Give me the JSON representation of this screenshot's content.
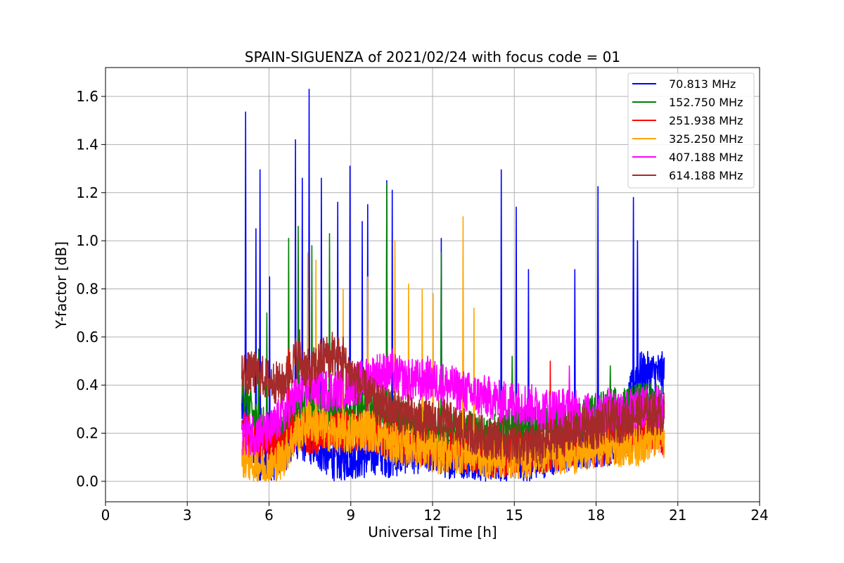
{
  "chart_data": {
    "type": "line",
    "title": "SPAIN-SIGUENZA of 2021/02/24 with focus code = 01",
    "xlabel": "Universal Time [h]",
    "ylabel": "Y-factor [dB]",
    "xlim": [
      0,
      24
    ],
    "ylim": [
      -0.085,
      1.72
    ],
    "xticks": [
      0,
      3,
      6,
      9,
      12,
      15,
      18,
      21,
      24
    ],
    "xtick_labels": [
      "0",
      "3",
      "6",
      "9",
      "12",
      "15",
      "18",
      "21",
      "24"
    ],
    "yticks": [
      0.0,
      0.2,
      0.4,
      0.6,
      0.8,
      1.0,
      1.2,
      1.4,
      1.6
    ],
    "ytick_labels": [
      "0.0",
      "0.2",
      "0.4",
      "0.6",
      "0.8",
      "1.0",
      "1.2",
      "1.4",
      "1.6"
    ],
    "grid": true,
    "legend_position": "top-right",
    "x_range_of_data": [
      5.0,
      20.5
    ],
    "series": [
      {
        "name": " 70.813 MHz",
        "color": "#0000ff",
        "x": [
          5.0,
          5.5,
          6.0,
          6.5,
          7.0,
          7.5,
          8.0,
          8.5,
          9.0,
          9.5,
          10.0,
          10.5,
          11.0,
          11.5,
          12.0,
          12.5,
          13.0,
          13.5,
          14.0,
          14.5,
          15.0,
          15.5,
          16.0,
          16.5,
          17.0,
          17.5,
          18.0,
          18.5,
          19.0,
          19.5,
          20.0,
          20.5
        ],
        "y": [
          0.3,
          0.1,
          0.05,
          0.12,
          0.18,
          0.16,
          0.12,
          0.08,
          0.1,
          0.1,
          0.12,
          0.1,
          0.12,
          0.12,
          0.12,
          0.1,
          0.1,
          0.1,
          0.08,
          0.08,
          0.1,
          0.08,
          0.1,
          0.12,
          0.12,
          0.14,
          0.15,
          0.15,
          0.25,
          0.45,
          0.45,
          0.45
        ],
        "peaks": [
          [
            5.12,
            1.535
          ],
          [
            5.5,
            1.05
          ],
          [
            5.65,
            1.295
          ],
          [
            6.0,
            0.85
          ],
          [
            6.95,
            1.42
          ],
          [
            7.2,
            1.26
          ],
          [
            7.45,
            1.63
          ],
          [
            7.9,
            1.26
          ],
          [
            8.5,
            1.16
          ],
          [
            8.95,
            1.31
          ],
          [
            9.4,
            1.08
          ],
          [
            9.6,
            1.15
          ],
          [
            10.3,
            1.25
          ],
          [
            10.5,
            1.21
          ],
          [
            12.3,
            1.01
          ],
          [
            14.5,
            1.295
          ],
          [
            15.05,
            1.14
          ],
          [
            15.5,
            0.88
          ],
          [
            17.2,
            0.88
          ],
          [
            18.05,
            1.225
          ],
          [
            19.35,
            1.18
          ],
          [
            19.5,
            1.0
          ]
        ]
      },
      {
        "name": "152.750 MHz",
        "color": "#008000",
        "x": [
          5.0,
          5.5,
          6.0,
          6.5,
          7.0,
          7.5,
          8.0,
          8.5,
          9.0,
          9.5,
          10.0,
          10.5,
          11.0,
          11.5,
          12.0,
          12.5,
          13.0,
          13.5,
          14.0,
          14.5,
          15.0,
          15.5,
          16.0,
          16.5,
          17.0,
          17.5,
          18.0,
          18.5,
          19.0,
          19.5,
          20.0,
          20.5
        ],
        "y": [
          0.4,
          0.25,
          0.2,
          0.2,
          0.3,
          0.28,
          0.3,
          0.28,
          0.3,
          0.3,
          0.3,
          0.28,
          0.25,
          0.25,
          0.22,
          0.2,
          0.2,
          0.2,
          0.18,
          0.2,
          0.22,
          0.22,
          0.22,
          0.22,
          0.25,
          0.25,
          0.28,
          0.3,
          0.3,
          0.32,
          0.32,
          0.32
        ],
        "peaks": [
          [
            5.6,
            0.55
          ],
          [
            5.9,
            0.7
          ],
          [
            6.7,
            1.01
          ],
          [
            7.05,
            1.06
          ],
          [
            7.55,
            0.98
          ],
          [
            8.2,
            1.03
          ],
          [
            10.3,
            1.24
          ],
          [
            12.3,
            0.95
          ],
          [
            14.9,
            0.52
          ],
          [
            18.5,
            0.48
          ]
        ]
      },
      {
        "name": "251.938 MHz",
        "color": "#ff0000",
        "x": [
          5.0,
          5.5,
          6.0,
          6.5,
          7.0,
          7.5,
          8.0,
          8.5,
          9.0,
          9.5,
          10.0,
          10.5,
          11.0,
          11.5,
          12.0,
          12.5,
          13.0,
          13.5,
          14.0,
          14.5,
          15.0,
          15.5,
          16.0,
          16.5,
          17.0,
          17.5,
          18.0,
          18.5,
          19.0,
          19.5,
          20.0,
          20.5
        ],
        "y": [
          0.2,
          0.18,
          0.15,
          0.15,
          0.22,
          0.2,
          0.2,
          0.2,
          0.22,
          0.2,
          0.2,
          0.18,
          0.15,
          0.15,
          0.15,
          0.12,
          0.12,
          0.12,
          0.1,
          0.1,
          0.12,
          0.12,
          0.12,
          0.12,
          0.15,
          0.15,
          0.15,
          0.15,
          0.18,
          0.2,
          0.2,
          0.2
        ],
        "peaks": [
          [
            6.7,
            0.55
          ],
          [
            16.3,
            0.5
          ]
        ]
      },
      {
        "name": "325.250 MHz",
        "color": "#ffa500",
        "x": [
          5.0,
          5.5,
          6.0,
          6.5,
          7.0,
          7.5,
          8.0,
          8.5,
          9.0,
          9.5,
          10.0,
          10.5,
          11.0,
          11.5,
          12.0,
          12.5,
          13.0,
          13.5,
          14.0,
          14.5,
          15.0,
          15.5,
          16.0,
          16.5,
          17.0,
          17.5,
          18.0,
          18.5,
          19.0,
          19.5,
          20.0,
          20.5
        ],
        "y": [
          0.1,
          0.08,
          0.05,
          0.1,
          0.2,
          0.25,
          0.22,
          0.2,
          0.2,
          0.22,
          0.2,
          0.15,
          0.15,
          0.15,
          0.12,
          0.12,
          0.12,
          0.12,
          0.1,
          0.1,
          0.1,
          0.1,
          0.12,
          0.12,
          0.12,
          0.12,
          0.15,
          0.15,
          0.15,
          0.15,
          0.18,
          0.18
        ],
        "peaks": [
          [
            7.4,
            0.95
          ],
          [
            7.7,
            0.92
          ],
          [
            8.7,
            0.8
          ],
          [
            9.6,
            0.85
          ],
          [
            10.6,
            1.0
          ],
          [
            11.1,
            0.82
          ],
          [
            11.6,
            0.8
          ],
          [
            12.0,
            0.78
          ],
          [
            13.1,
            1.1
          ],
          [
            13.5,
            0.72
          ]
        ]
      },
      {
        "name": "407.188 MHz",
        "color": "#ff00ff",
        "x": [
          5.0,
          5.5,
          6.0,
          6.5,
          7.0,
          7.5,
          8.0,
          8.5,
          9.0,
          9.5,
          10.0,
          10.5,
          11.0,
          11.5,
          12.0,
          12.5,
          13.0,
          13.5,
          14.0,
          14.5,
          15.0,
          15.5,
          16.0,
          16.5,
          17.0,
          17.5,
          18.0,
          18.5,
          19.0,
          19.5,
          20.0,
          20.5
        ],
        "y": [
          0.2,
          0.2,
          0.2,
          0.28,
          0.35,
          0.4,
          0.38,
          0.38,
          0.4,
          0.42,
          0.45,
          0.45,
          0.42,
          0.42,
          0.42,
          0.4,
          0.38,
          0.36,
          0.35,
          0.33,
          0.33,
          0.32,
          0.3,
          0.3,
          0.3,
          0.28,
          0.28,
          0.3,
          0.3,
          0.3,
          0.32,
          0.3
        ],
        "peaks": [
          [
            10.5,
            0.55
          ],
          [
            11.8,
            0.52
          ],
          [
            17.0,
            0.48
          ]
        ]
      },
      {
        "name": "614.188 MHz",
        "color": "#a52a2a",
        "x": [
          5.0,
          5.5,
          6.0,
          6.5,
          7.0,
          7.5,
          8.0,
          8.5,
          9.0,
          9.5,
          10.0,
          10.5,
          11.0,
          11.5,
          12.0,
          12.5,
          13.0,
          13.5,
          14.0,
          14.5,
          15.0,
          15.5,
          16.0,
          16.5,
          17.0,
          17.5,
          18.0,
          18.5,
          19.0,
          19.5,
          20.0,
          20.5
        ],
        "y": [
          0.45,
          0.45,
          0.42,
          0.4,
          0.52,
          0.45,
          0.52,
          0.52,
          0.45,
          0.38,
          0.32,
          0.3,
          0.28,
          0.25,
          0.25,
          0.25,
          0.22,
          0.2,
          0.18,
          0.18,
          0.16,
          0.15,
          0.15,
          0.18,
          0.2,
          0.22,
          0.22,
          0.25,
          0.25,
          0.28,
          0.28,
          0.28
        ],
        "peaks": [
          [
            7.1,
            0.63
          ],
          [
            8.3,
            0.62
          ],
          [
            8.7,
            0.6
          ]
        ]
      }
    ]
  }
}
